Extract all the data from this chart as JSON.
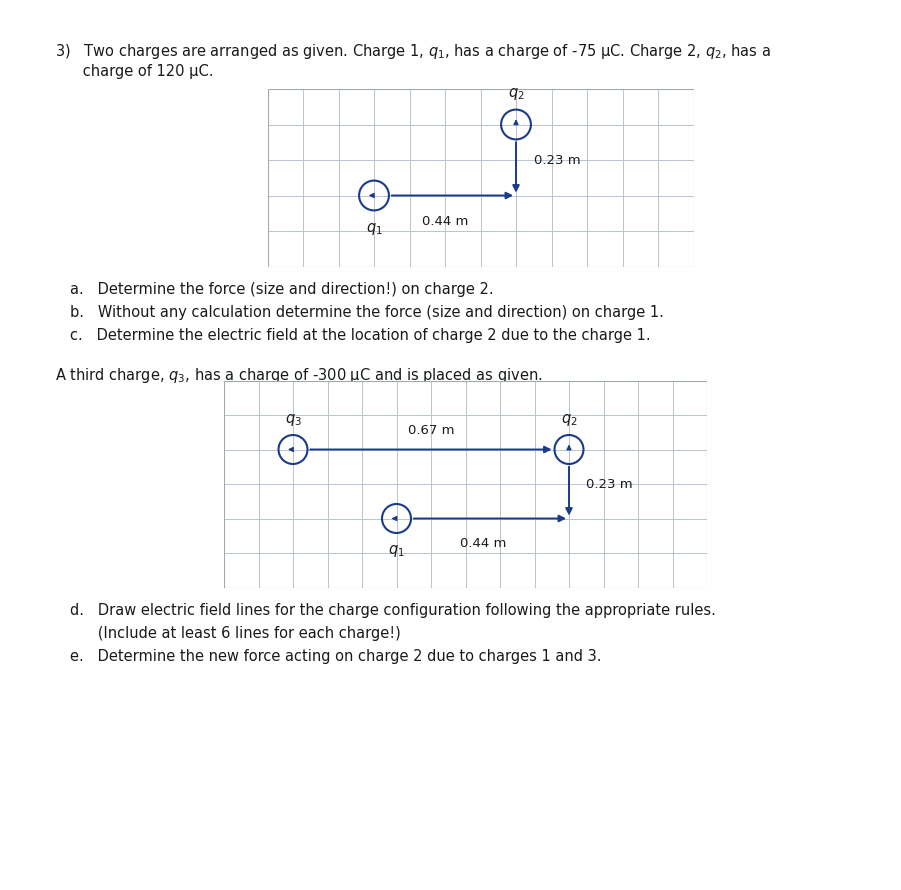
{
  "page_bg": "#ffffff",
  "grid_color": "#b8c4d0",
  "arrow_color": "#1a3a8a",
  "circle_color": "#1a3a8a",
  "text_color": "#1a1a1a",
  "font_size_main": 10.5,
  "font_size_label": 9.5,
  "font_size_charge": 10.5,
  "header_text_line1": "3)   Two charges are arranged as given. Charge 1, $q_1$, has a charge of -75 μC. Charge 2, $q_2$, has a",
  "header_text_line2": "      charge of 120 μC.",
  "third_charge_text": "A third charge, $q_3$, has a charge of -300 μC and is placed as given.",
  "questions_abc": [
    "a.   Determine the force (size and direction!) on charge 2.",
    "b.   Without any calculation determine the force (size and direction) on charge 1.",
    "c.   Determine the electric field at the location of charge 2 due to the charge 1."
  ],
  "questions_de": [
    "d.   Draw electric field lines for the charge configuration following the appropriate rules.",
    "      (Include at least 6 lines for each charge!)",
    "e.   Determine the new force acting on charge 2 due to charges 1 and 3."
  ],
  "diag1": {
    "ncols": 12,
    "nrows": 5,
    "q1_col": 3,
    "q1_row": 2,
    "q2_col": 7,
    "q2_row": 4,
    "label_horiz": "0.44 m",
    "label_vert": "0.23 m"
  },
  "diag2": {
    "ncols": 14,
    "nrows": 6,
    "q1_col": 5,
    "q1_row": 2,
    "q2_col": 10,
    "q2_row": 4,
    "q3_col": 2,
    "q3_row": 4,
    "label_horiz": "0.44 m",
    "label_vert": "0.23 m",
    "label_q3q2": "0.67 m"
  }
}
